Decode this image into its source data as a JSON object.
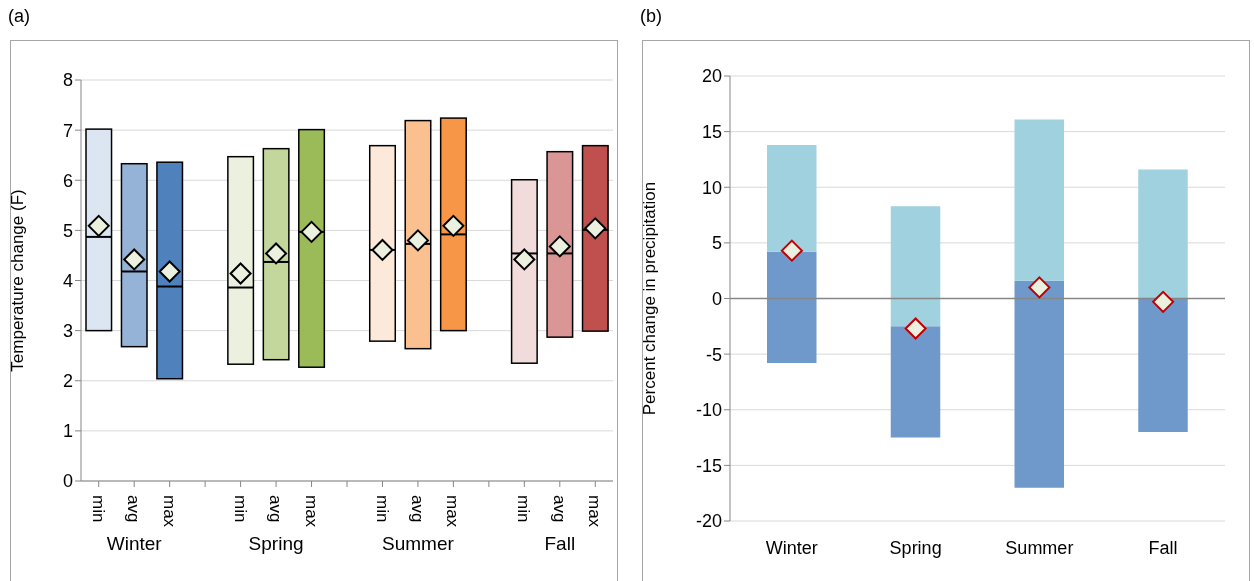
{
  "chart_data": [
    {
      "type": "box",
      "title": "(a)",
      "ylabel": "Temperature change (F)",
      "categories": [
        "min",
        "avg",
        "max",
        null,
        "min",
        "avg",
        "max",
        null,
        "min",
        "avg",
        "max",
        null,
        "min",
        "avg",
        "max"
      ],
      "boxes": [
        {
          "low": 3.0,
          "q1": 3.0,
          "median": 4.87,
          "q3": 7.02,
          "high": 7.02,
          "mean": 5.09
        },
        {
          "low": 2.68,
          "q1": 2.68,
          "median": 4.18,
          "q3": 6.33,
          "high": 6.33,
          "mean": 4.42
        },
        {
          "low": 2.04,
          "q1": 2.04,
          "median": 3.88,
          "q3": 6.36,
          "high": 6.36,
          "mean": 4.18
        },
        null,
        {
          "low": 2.33,
          "q1": 2.33,
          "median": 3.86,
          "q3": 6.47,
          "high": 6.47,
          "mean": 4.14
        },
        {
          "low": 2.42,
          "q1": 2.42,
          "median": 4.37,
          "q3": 6.63,
          "high": 6.63,
          "mean": 4.54
        },
        {
          "low": 2.27,
          "q1": 2.27,
          "median": 4.97,
          "q3": 7.01,
          "high": 7.01,
          "mean": 4.97
        },
        null,
        {
          "low": 2.79,
          "q1": 2.79,
          "median": 4.61,
          "q3": 6.69,
          "high": 6.69,
          "mean": 4.61
        },
        {
          "low": 2.64,
          "q1": 2.64,
          "median": 4.73,
          "q3": 7.19,
          "high": 7.19,
          "mean": 4.8
        },
        {
          "low": 3.0,
          "q1": 3.0,
          "median": 4.92,
          "q3": 7.24,
          "high": 7.24,
          "mean": 5.09
        },
        null,
        {
          "low": 2.35,
          "q1": 2.35,
          "median": 4.54,
          "q3": 6.01,
          "high": 6.01,
          "mean": 4.42
        },
        {
          "low": 2.87,
          "q1": 2.87,
          "median": 4.54,
          "q3": 6.57,
          "high": 6.57,
          "mean": 4.68
        },
        {
          "low": 2.99,
          "q1": 2.99,
          "median": 5.01,
          "q3": 6.69,
          "high": 6.69,
          "mean": 5.04
        }
      ],
      "colors": [
        "#dce6f2",
        "#95b3d7",
        "#4f81bd",
        null,
        "#ebf1de",
        "#c3d69b",
        "#9bbb59",
        null,
        "#fde9d9",
        "#fac090",
        "#f79646",
        null,
        "#f2dcdb",
        "#d99694",
        "#c0504d"
      ],
      "marker": "diamond",
      "ylim": [
        0,
        8
      ],
      "yticks": [
        0,
        1,
        2,
        3,
        4,
        5,
        6,
        7,
        8
      ],
      "grid": "y",
      "annotations": [
        "Winter",
        "Spring",
        "Summer",
        "Fall"
      ]
    },
    {
      "type": "bar",
      "title": "(b)",
      "ylabel": "Percent change in precipitation",
      "categories": [
        "Winter",
        "Spring",
        "Summer",
        "Fall"
      ],
      "series": [
        {
          "color": "#7099cb",
          "base": [
            -5.8,
            -12.5,
            -17.0,
            -12.0
          ],
          "values": [
            10.0,
            10.0,
            18.6,
            12.0
          ]
        },
        {
          "color": "#9fd1df",
          "base": [
            4.2,
            -2.5,
            1.6,
            0.0
          ],
          "values": [
            9.6,
            10.8,
            14.5,
            11.6
          ]
        },
        {
          "type": "scatter",
          "marker": "diamond",
          "color": "#c00000",
          "x": [
            "Winter",
            "Spring",
            "Summer",
            "Fall"
          ],
          "values": [
            4.3,
            -2.7,
            1.0,
            -0.3
          ]
        }
      ],
      "ylim": [
        -20,
        20
      ],
      "yticks": [
        -20,
        -15,
        -10,
        -5,
        0,
        5,
        10,
        15,
        20
      ],
      "grid": "y"
    }
  ]
}
